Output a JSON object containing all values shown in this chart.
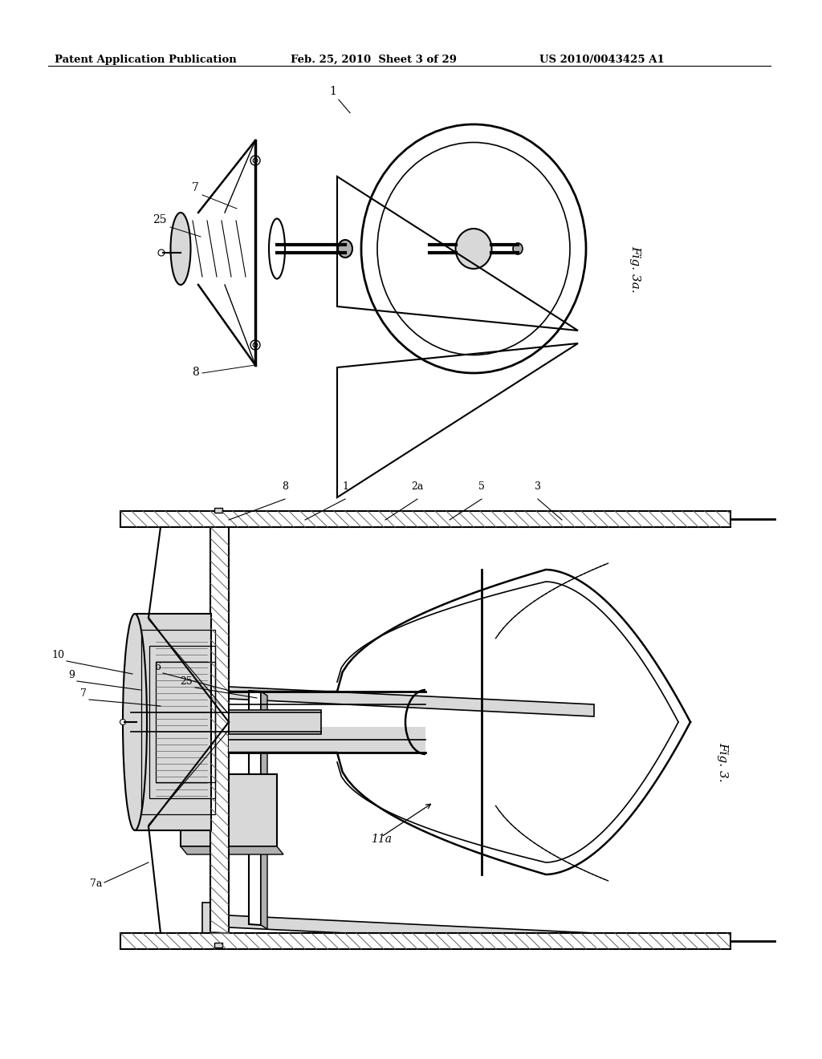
{
  "header_left": "Patent Application Publication",
  "header_mid": "Feb. 25, 2010  Sheet 3 of 29",
  "header_right": "US 2010/0043425 A1",
  "fig3a_label": "Fig. 3a.",
  "fig3_label": "Fig. 3.",
  "bg": "#ffffff",
  "lc": "#000000",
  "gray_light": "#d8d8d8",
  "gray_med": "#b0b0b0",
  "gray_dark": "#606060"
}
